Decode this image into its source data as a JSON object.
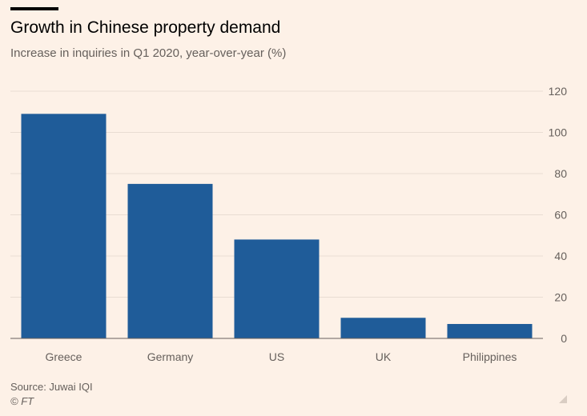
{
  "header": {
    "title": "Growth in Chinese property demand",
    "subtitle": "Increase in inquiries in Q1 2020, year-over-year (%)"
  },
  "footer": {
    "source": "Source: Juwai IQI",
    "credit": "© FT"
  },
  "colors": {
    "bar": "#1f5c99",
    "background": "#fdf1e7",
    "grid": "#e9ddd3",
    "axis": "#66605c",
    "tick_text": "#66605c"
  },
  "chart_data": {
    "type": "bar",
    "title": "Growth in Chinese property demand",
    "subtitle": "Increase in inquiries in Q1 2020, year-over-year (%)",
    "categories": [
      "Greece",
      "Germany",
      "US",
      "UK",
      "Philippines"
    ],
    "values": [
      109,
      75,
      48,
      10,
      7
    ],
    "ylim": [
      0,
      120
    ],
    "yticks": [
      0,
      20,
      40,
      60,
      80,
      100,
      120
    ],
    "y_axis_side": "right",
    "grid": true,
    "xlabel": "",
    "ylabel": ""
  }
}
